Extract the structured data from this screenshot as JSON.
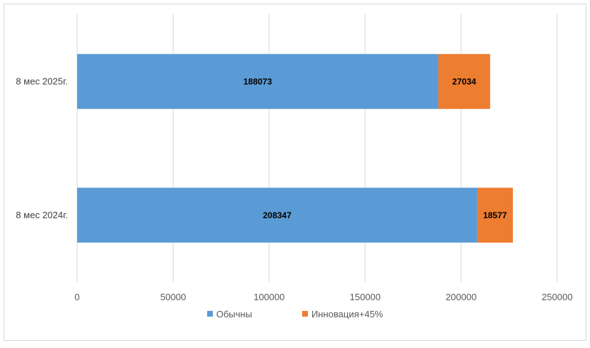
{
  "chart_data": {
    "type": "bar",
    "orientation": "horizontal",
    "stacked": true,
    "title": "",
    "xlabel": "",
    "ylabel": "",
    "categories": [
      "8 мес 2025г.",
      "8 мес 2024г."
    ],
    "series": [
      {
        "name": "Обычны",
        "values": [
          188073,
          208347
        ],
        "color": "#5b9bd5"
      },
      {
        "name": "Инновация+45%",
        "values": [
          27034,
          18577
        ],
        "color": "#ed7d31"
      }
    ],
    "xlim": [
      0,
      250000
    ],
    "xticks": [
      0,
      50000,
      100000,
      150000,
      200000,
      250000
    ],
    "grid": true,
    "legend_position": "bottom"
  }
}
